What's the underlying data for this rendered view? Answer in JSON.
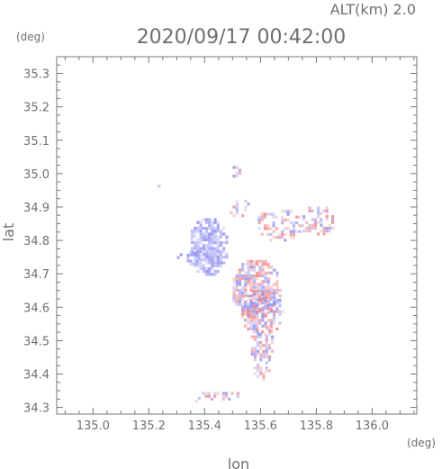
{
  "header": {
    "altitude": "ALT(km) 2.0",
    "datetime": "2020/09/17 00:42:00"
  },
  "chart_data": {
    "type": "heatmap",
    "title": "2020/09/17 00:42:00",
    "subtitle": "ALT(km) 2.0",
    "xlabel": "lon",
    "ylabel": "lat",
    "x_unit": "(deg)",
    "y_unit": "(deg)",
    "xlim": [
      134.87,
      136.16
    ],
    "ylim": [
      34.28,
      35.35
    ],
    "x_ticks": [
      135.0,
      135.2,
      135.4,
      135.6,
      135.8,
      136.0
    ],
    "x_tick_labels": [
      "135.0",
      "135.2",
      "135.4",
      "135.6",
      "135.8",
      "136.0"
    ],
    "y_ticks": [
      34.3,
      34.4,
      34.5,
      34.6,
      34.7,
      34.8,
      34.9,
      35.0,
      35.1,
      35.2,
      35.3
    ],
    "y_tick_labels": [
      "34.3",
      "34.4",
      "34.5",
      "34.6",
      "34.7",
      "34.8",
      "34.9",
      "35.0",
      "35.1",
      "35.2",
      "35.3"
    ],
    "colors": {
      "positive": "#f08080",
      "negative": "#8a8af0",
      "frame": "#777777",
      "text": "#6f6f6f"
    },
    "echo_regions": [
      {
        "lon": 135.41,
        "lat": 34.785,
        "lon_span": 0.07,
        "lat_span": 0.09,
        "sign": "negative",
        "density": 0.95
      },
      {
        "lon": 135.355,
        "lat": 34.752,
        "lon_span": 0.03,
        "lat_span": 0.025,
        "sign": "negative",
        "density": 0.9
      },
      {
        "lon": 135.305,
        "lat": 34.755,
        "lon_span": 0.015,
        "lat_span": 0.015,
        "sign": "negative",
        "density": 0.8
      },
      {
        "lon": 135.23,
        "lat": 34.967,
        "lon_span": 0.008,
        "lat_span": 0.008,
        "sign": "negative",
        "density": 1.0
      },
      {
        "lon": 135.58,
        "lat": 34.66,
        "lon_span": 0.09,
        "lat_span": 0.09,
        "sign": "mixed",
        "density": 0.85
      },
      {
        "lon": 135.6,
        "lat": 34.59,
        "lon_span": 0.08,
        "lat_span": 0.07,
        "sign": "mixed",
        "density": 0.8
      },
      {
        "lon": 135.6,
        "lat": 34.49,
        "lon_span": 0.045,
        "lat_span": 0.06,
        "sign": "mixed",
        "density": 0.7
      },
      {
        "lon": 135.6,
        "lat": 34.41,
        "lon_span": 0.035,
        "lat_span": 0.03,
        "sign": "mixed",
        "density": 0.6
      },
      {
        "lon": 135.66,
        "lat": 34.85,
        "lon_span": 0.09,
        "lat_span": 0.05,
        "sign": "mixed",
        "density": 0.5
      },
      {
        "lon": 135.8,
        "lat": 34.86,
        "lon_span": 0.06,
        "lat_span": 0.05,
        "sign": "mixed",
        "density": 0.55
      },
      {
        "lon": 135.52,
        "lat": 34.9,
        "lon_span": 0.04,
        "lat_span": 0.03,
        "sign": "mixed",
        "density": 0.35
      },
      {
        "lon": 135.51,
        "lat": 35.01,
        "lon_span": 0.02,
        "lat_span": 0.03,
        "sign": "mixed",
        "density": 0.3
      },
      {
        "lon": 135.46,
        "lat": 34.34,
        "lon_span": 0.08,
        "lat_span": 0.015,
        "sign": "mixed",
        "density": 0.5
      },
      {
        "lon": 135.37,
        "lat": 34.33,
        "lon_span": 0.015,
        "lat_span": 0.01,
        "sign": "mixed",
        "density": 0.8
      }
    ]
  }
}
